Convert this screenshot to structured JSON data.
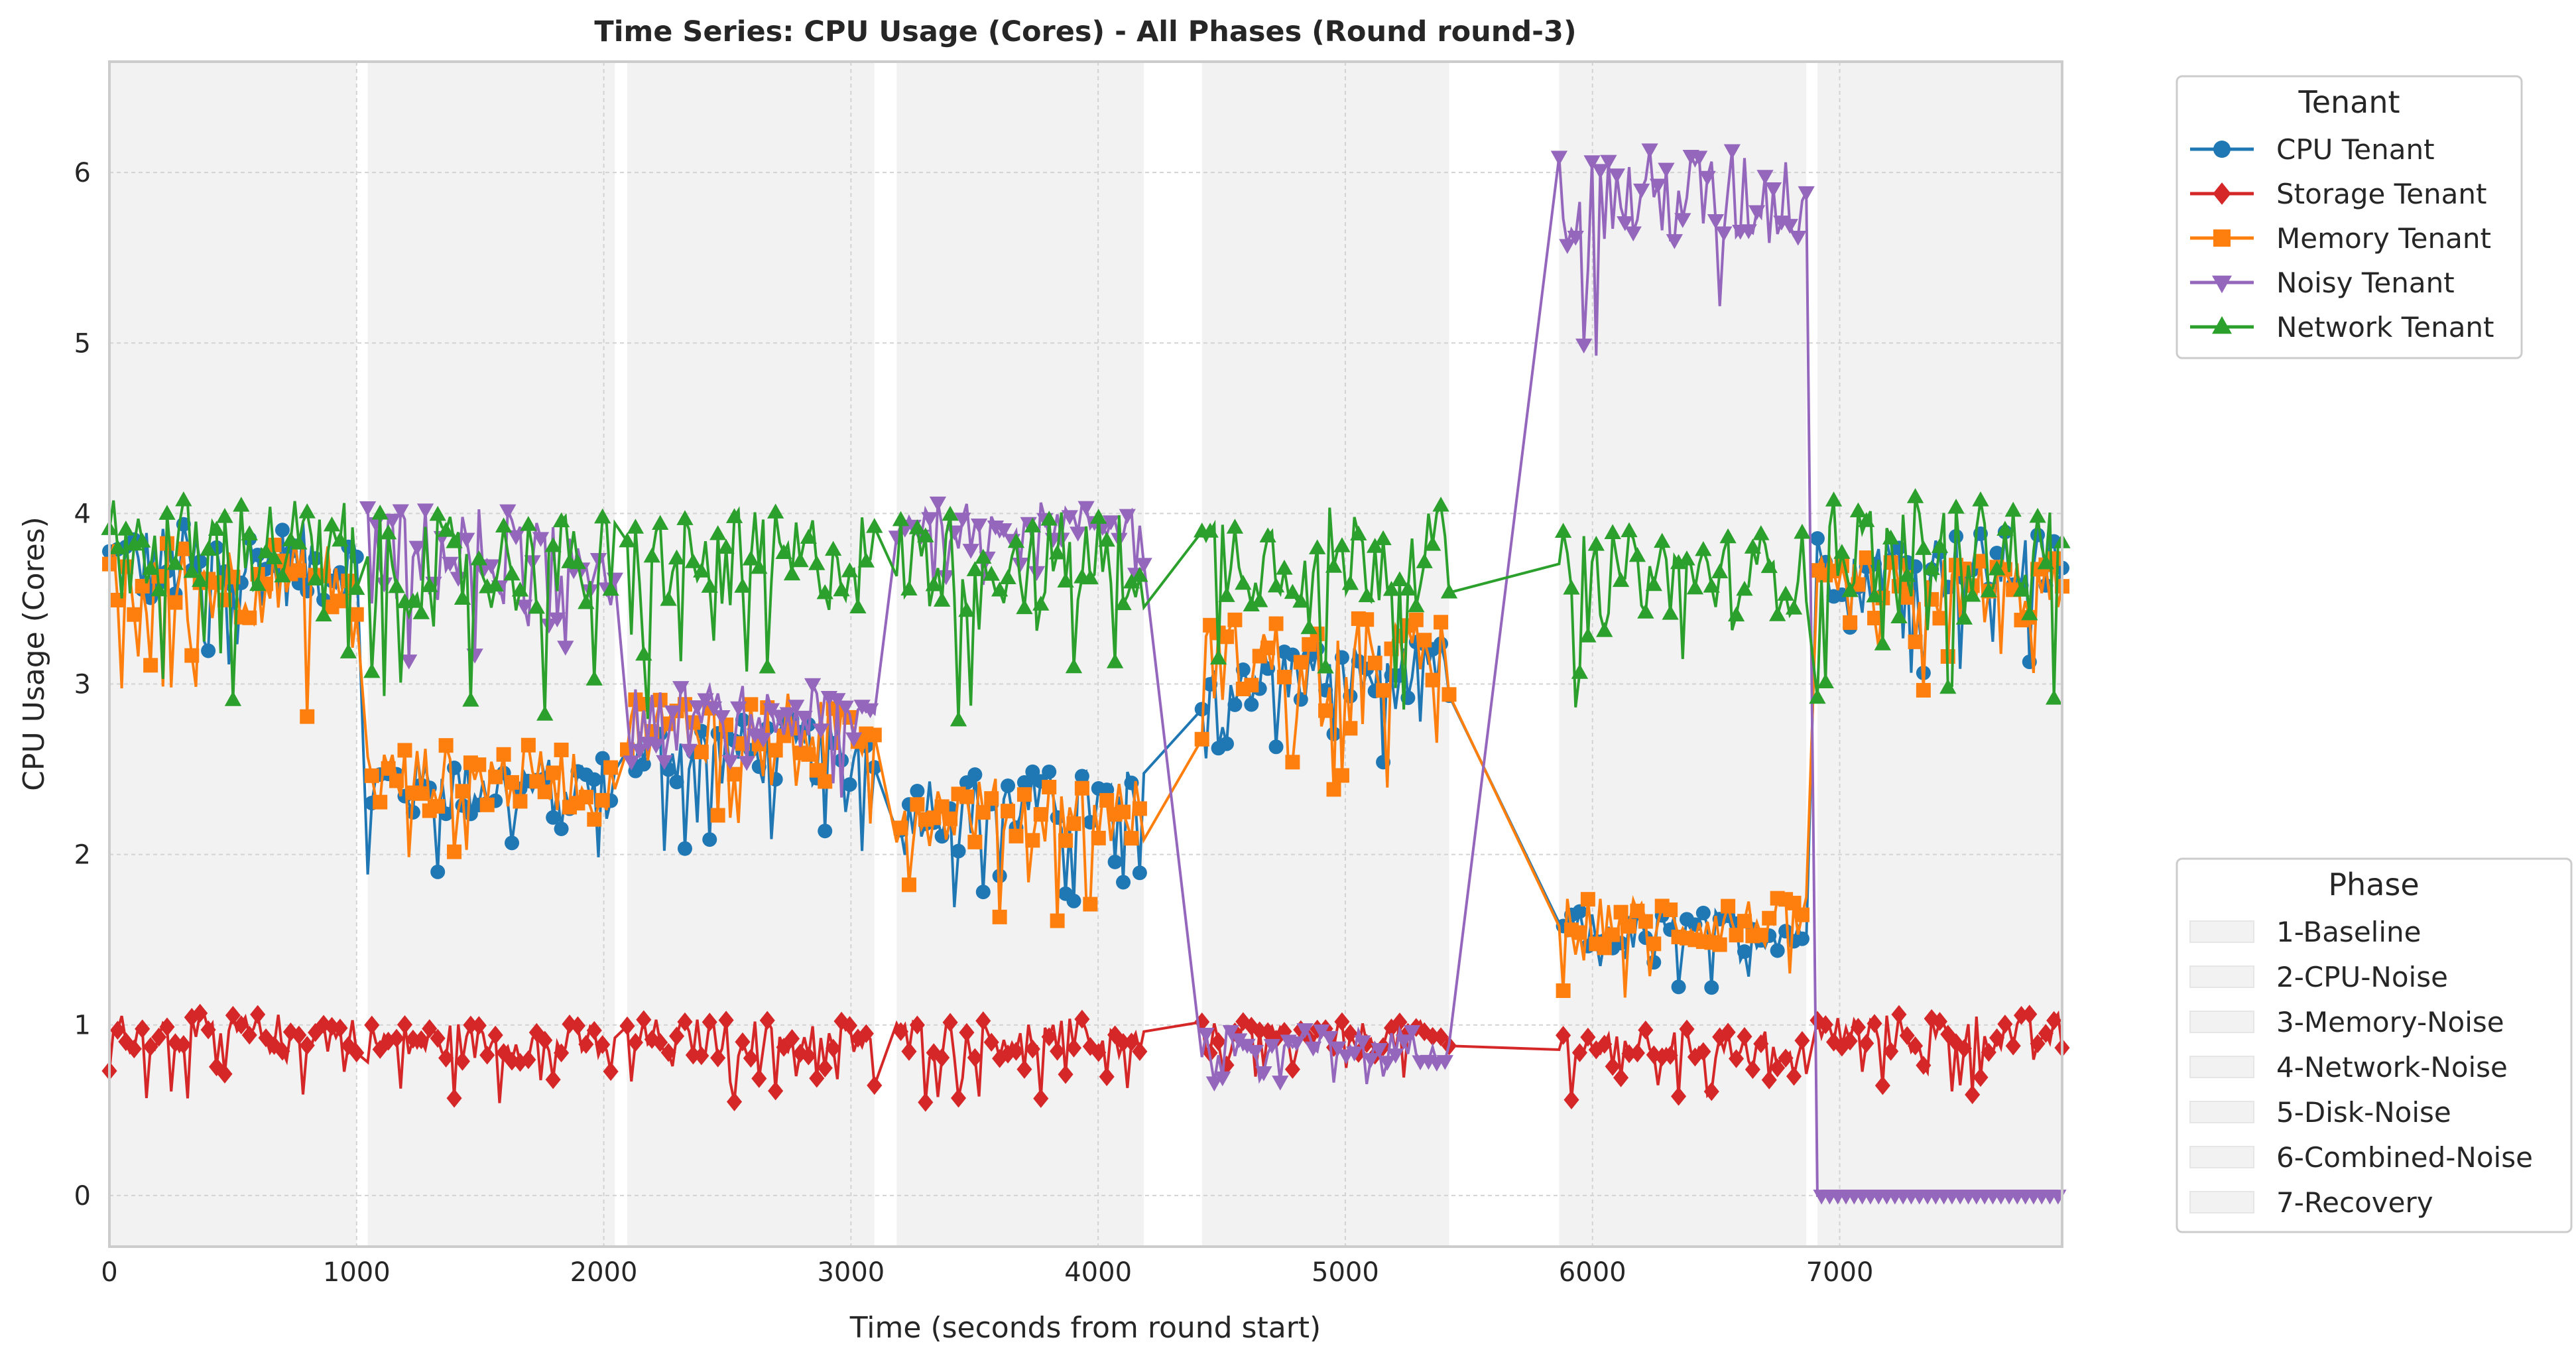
{
  "chart_data": {
    "type": "line",
    "title": "Time Series: CPU Usage (Cores) - All Phases (Round round-3)",
    "xlabel": "Time (seconds from round start)",
    "ylabel": "CPU Usage (Cores)",
    "xlim": [
      0,
      7900
    ],
    "ylim": [
      -0.3,
      6.65
    ],
    "xticks": [
      0,
      1000,
      2000,
      3000,
      4000,
      5000,
      6000,
      7000
    ],
    "yticks": [
      0,
      1,
      2,
      3,
      4,
      5,
      6
    ],
    "grid": true,
    "phases": [
      {
        "name": "1-Baseline",
        "x": [
          0,
          1000
        ]
      },
      {
        "name": "2-CPU-Noise",
        "x": [
          1045,
          2045
        ]
      },
      {
        "name": "3-Memory-Noise",
        "x": [
          2095,
          3095
        ]
      },
      {
        "name": "4-Network-Noise",
        "x": [
          3185,
          4185
        ]
      },
      {
        "name": "5-Disk-Noise",
        "x": [
          4420,
          5420
        ]
      },
      {
        "name": "6-Combined-Noise",
        "x": [
          5865,
          6865
        ]
      },
      {
        "name": "7-Recovery",
        "x": [
          6910,
          7900
        ]
      }
    ],
    "series": [
      {
        "name": "CPU Tenant",
        "color": "#1f77b4",
        "marker": "circle",
        "values": [
          3.7,
          2.4,
          2.6,
          2.3,
          3.05,
          1.55,
          3.7
        ],
        "noise": [
          0.25,
          0.2,
          0.2,
          0.2,
          0.2,
          0.12,
          0.2
        ]
      },
      {
        "name": "Storage Tenant",
        "color": "#d62728",
        "marker": "diamond",
        "values": [
          0.95,
          0.9,
          0.92,
          0.92,
          0.92,
          0.88,
          0.95
        ],
        "noise": [
          0.12,
          0.12,
          0.12,
          0.12,
          0.1,
          0.1,
          0.12
        ]
      },
      {
        "name": "Memory Tenant",
        "color": "#ff7f0e",
        "marker": "square",
        "values": [
          3.6,
          2.45,
          2.75,
          2.25,
          3.15,
          1.6,
          3.55
        ],
        "noise": [
          0.25,
          0.2,
          0.2,
          0.2,
          0.25,
          0.15,
          0.2
        ]
      },
      {
        "name": "Noisy Tenant",
        "color": "#9467bd",
        "marker": "triangle-down",
        "values": [
          null,
          3.75,
          2.8,
          3.95,
          0.88,
          5.85,
          0.0
        ],
        "noise": [
          0,
          0.3,
          0.2,
          0.12,
          0.1,
          0.3,
          0.0
        ]
      },
      {
        "name": "Network Tenant",
        "color": "#2ca02c",
        "marker": "triangle-up",
        "values": [
          3.8,
          3.7,
          3.72,
          3.72,
          3.75,
          3.65,
          3.8
        ],
        "noise": [
          0.3,
          0.3,
          0.3,
          0.3,
          0.3,
          0.25,
          0.3
        ]
      }
    ],
    "legend_tenant": {
      "title": "Tenant",
      "placement": "top-right outside"
    },
    "legend_phase": {
      "title": "Phase",
      "placement": "bottom-right outside"
    }
  }
}
